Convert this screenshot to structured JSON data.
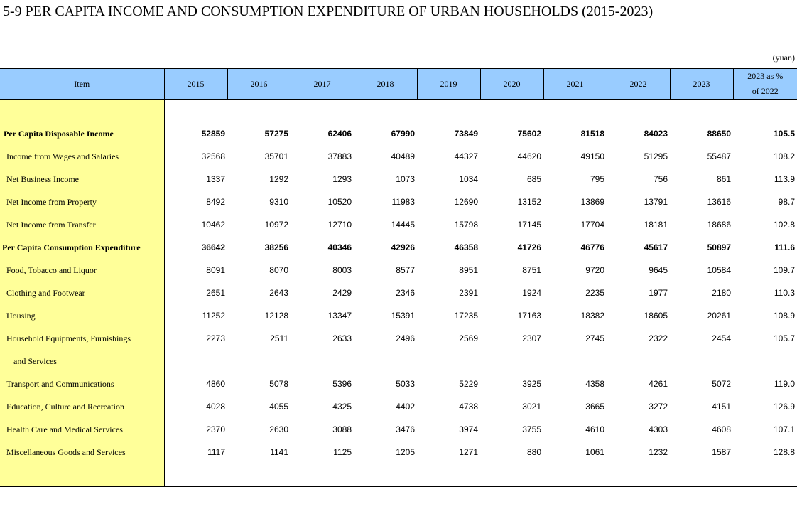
{
  "title": "5-9  PER CAPITA INCOME AND CONSUMPTION EXPENDITURE OF URBAN HOUSEHOLDS (2015-2023)",
  "unit": "(yuan)",
  "header": {
    "item": "Item",
    "years": [
      "2015",
      "2016",
      "2017",
      "2018",
      "2019",
      "2020",
      "2021",
      "2022",
      "2023"
    ],
    "ratio_line1": "2023 as %",
    "ratio_line2": "of 2022"
  },
  "rows": [
    {
      "label": "Per Capita Disposable Income",
      "bold": true,
      "values": [
        "52859",
        "57275",
        "62406",
        "67990",
        "73849",
        "75602",
        "81518",
        "84023",
        "88650",
        "105.5"
      ]
    },
    {
      "label": "Income from Wages and Salaries",
      "values": [
        "32568",
        "35701",
        "37883",
        "40489",
        "44327",
        "44620",
        "49150",
        "51295",
        "55487",
        "108.2"
      ]
    },
    {
      "label": "Net Business Income",
      "values": [
        "1337",
        "1292",
        "1293",
        "1073",
        "1034",
        "685",
        "795",
        "756",
        "861",
        "113.9"
      ]
    },
    {
      "label": "Net Income from Property",
      "values": [
        "8492",
        "9310",
        "10520",
        "11983",
        "12690",
        "13152",
        "13869",
        "13791",
        "13616",
        "98.7"
      ]
    },
    {
      "label": "Net Income from Transfer",
      "values": [
        "10462",
        "10972",
        "12710",
        "14445",
        "15798",
        "17145",
        "17704",
        "18181",
        "18686",
        "102.8"
      ]
    },
    {
      "label": "Per Capita Consumption Expenditure",
      "bold": true,
      "values": [
        "36642",
        "38256",
        "40346",
        "42926",
        "46358",
        "41726",
        "46776",
        "45617",
        "50897",
        "111.6"
      ]
    },
    {
      "label": "Food, Tobacco and Liquor",
      "values": [
        "8091",
        "8070",
        "8003",
        "8577",
        "8951",
        "8751",
        "9720",
        "9645",
        "10584",
        "109.7"
      ]
    },
    {
      "label": "Clothing and Footwear",
      "values": [
        "2651",
        "2643",
        "2429",
        "2346",
        "2391",
        "1924",
        "2235",
        "1977",
        "2180",
        "110.3"
      ]
    },
    {
      "label": "Housing",
      "values": [
        "11252",
        "12128",
        "13347",
        "15391",
        "17235",
        "17163",
        "18382",
        "18605",
        "20261",
        "108.9"
      ]
    },
    {
      "label": "Household Equipments, Furnishings",
      "values": [
        "2273",
        "2511",
        "2633",
        "2496",
        "2569",
        "2307",
        "2745",
        "2322",
        "2454",
        "105.7"
      ]
    },
    {
      "label": "and Services",
      "values": [
        "",
        "",
        "",
        "",
        "",
        "",
        "",
        "",
        "",
        ""
      ]
    },
    {
      "label": "Transport and Communications",
      "values": [
        "4860",
        "5078",
        "5396",
        "5033",
        "5229",
        "3925",
        "4358",
        "4261",
        "5072",
        "119.0"
      ]
    },
    {
      "label": "Education, Culture and Recreation",
      "values": [
        "4028",
        "4055",
        "4325",
        "4402",
        "4738",
        "3021",
        "3665",
        "3272",
        "4151",
        "126.9"
      ]
    },
    {
      "label": "Health Care and Medical Services",
      "values": [
        "2370",
        "2630",
        "3088",
        "3476",
        "3974",
        "3755",
        "4610",
        "4303",
        "4608",
        "107.1"
      ]
    },
    {
      "label": "Miscellaneous Goods and Services",
      "values": [
        "1117",
        "1141",
        "1125",
        "1205",
        "1271",
        "880",
        "1061",
        "1232",
        "1587",
        "128.8"
      ]
    }
  ]
}
